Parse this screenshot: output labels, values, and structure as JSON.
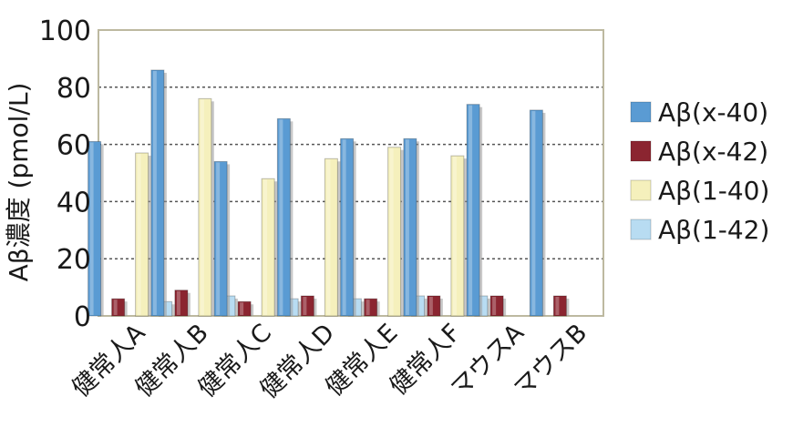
{
  "chart_data": {
    "type": "bar",
    "ylabel": "Aβ濃度 (pmol/L)",
    "ylim": [
      0,
      100
    ],
    "yticks": [
      0,
      20,
      40,
      60,
      80,
      100
    ],
    "grid": "horizontal dotted",
    "legend_position": "right",
    "categories": [
      "健常人A",
      "健常人B",
      "健常人C",
      "健常人D",
      "健常人E",
      "健常人F",
      "マウスA",
      "マウスB"
    ],
    "series": [
      {
        "name": "Aβ(x-40)",
        "color": "#5a9bd3",
        "values": [
          61,
          86,
          54,
          69,
          62,
          62,
          74,
          72
        ]
      },
      {
        "name": "Aβ(x-42)",
        "color": "#8b2530",
        "values": [
          6,
          9,
          5,
          7,
          6,
          7,
          7,
          7
        ]
      },
      {
        "name": "Aβ(1-40)",
        "color": "#f5f0bc",
        "values": [
          57,
          76,
          48,
          55,
          59,
          56,
          null,
          null
        ]
      },
      {
        "name": "Aβ(1-42)",
        "color": "#b8dcf2",
        "values": [
          5,
          7,
          6,
          6,
          7,
          7,
          null,
          null
        ]
      }
    ]
  }
}
